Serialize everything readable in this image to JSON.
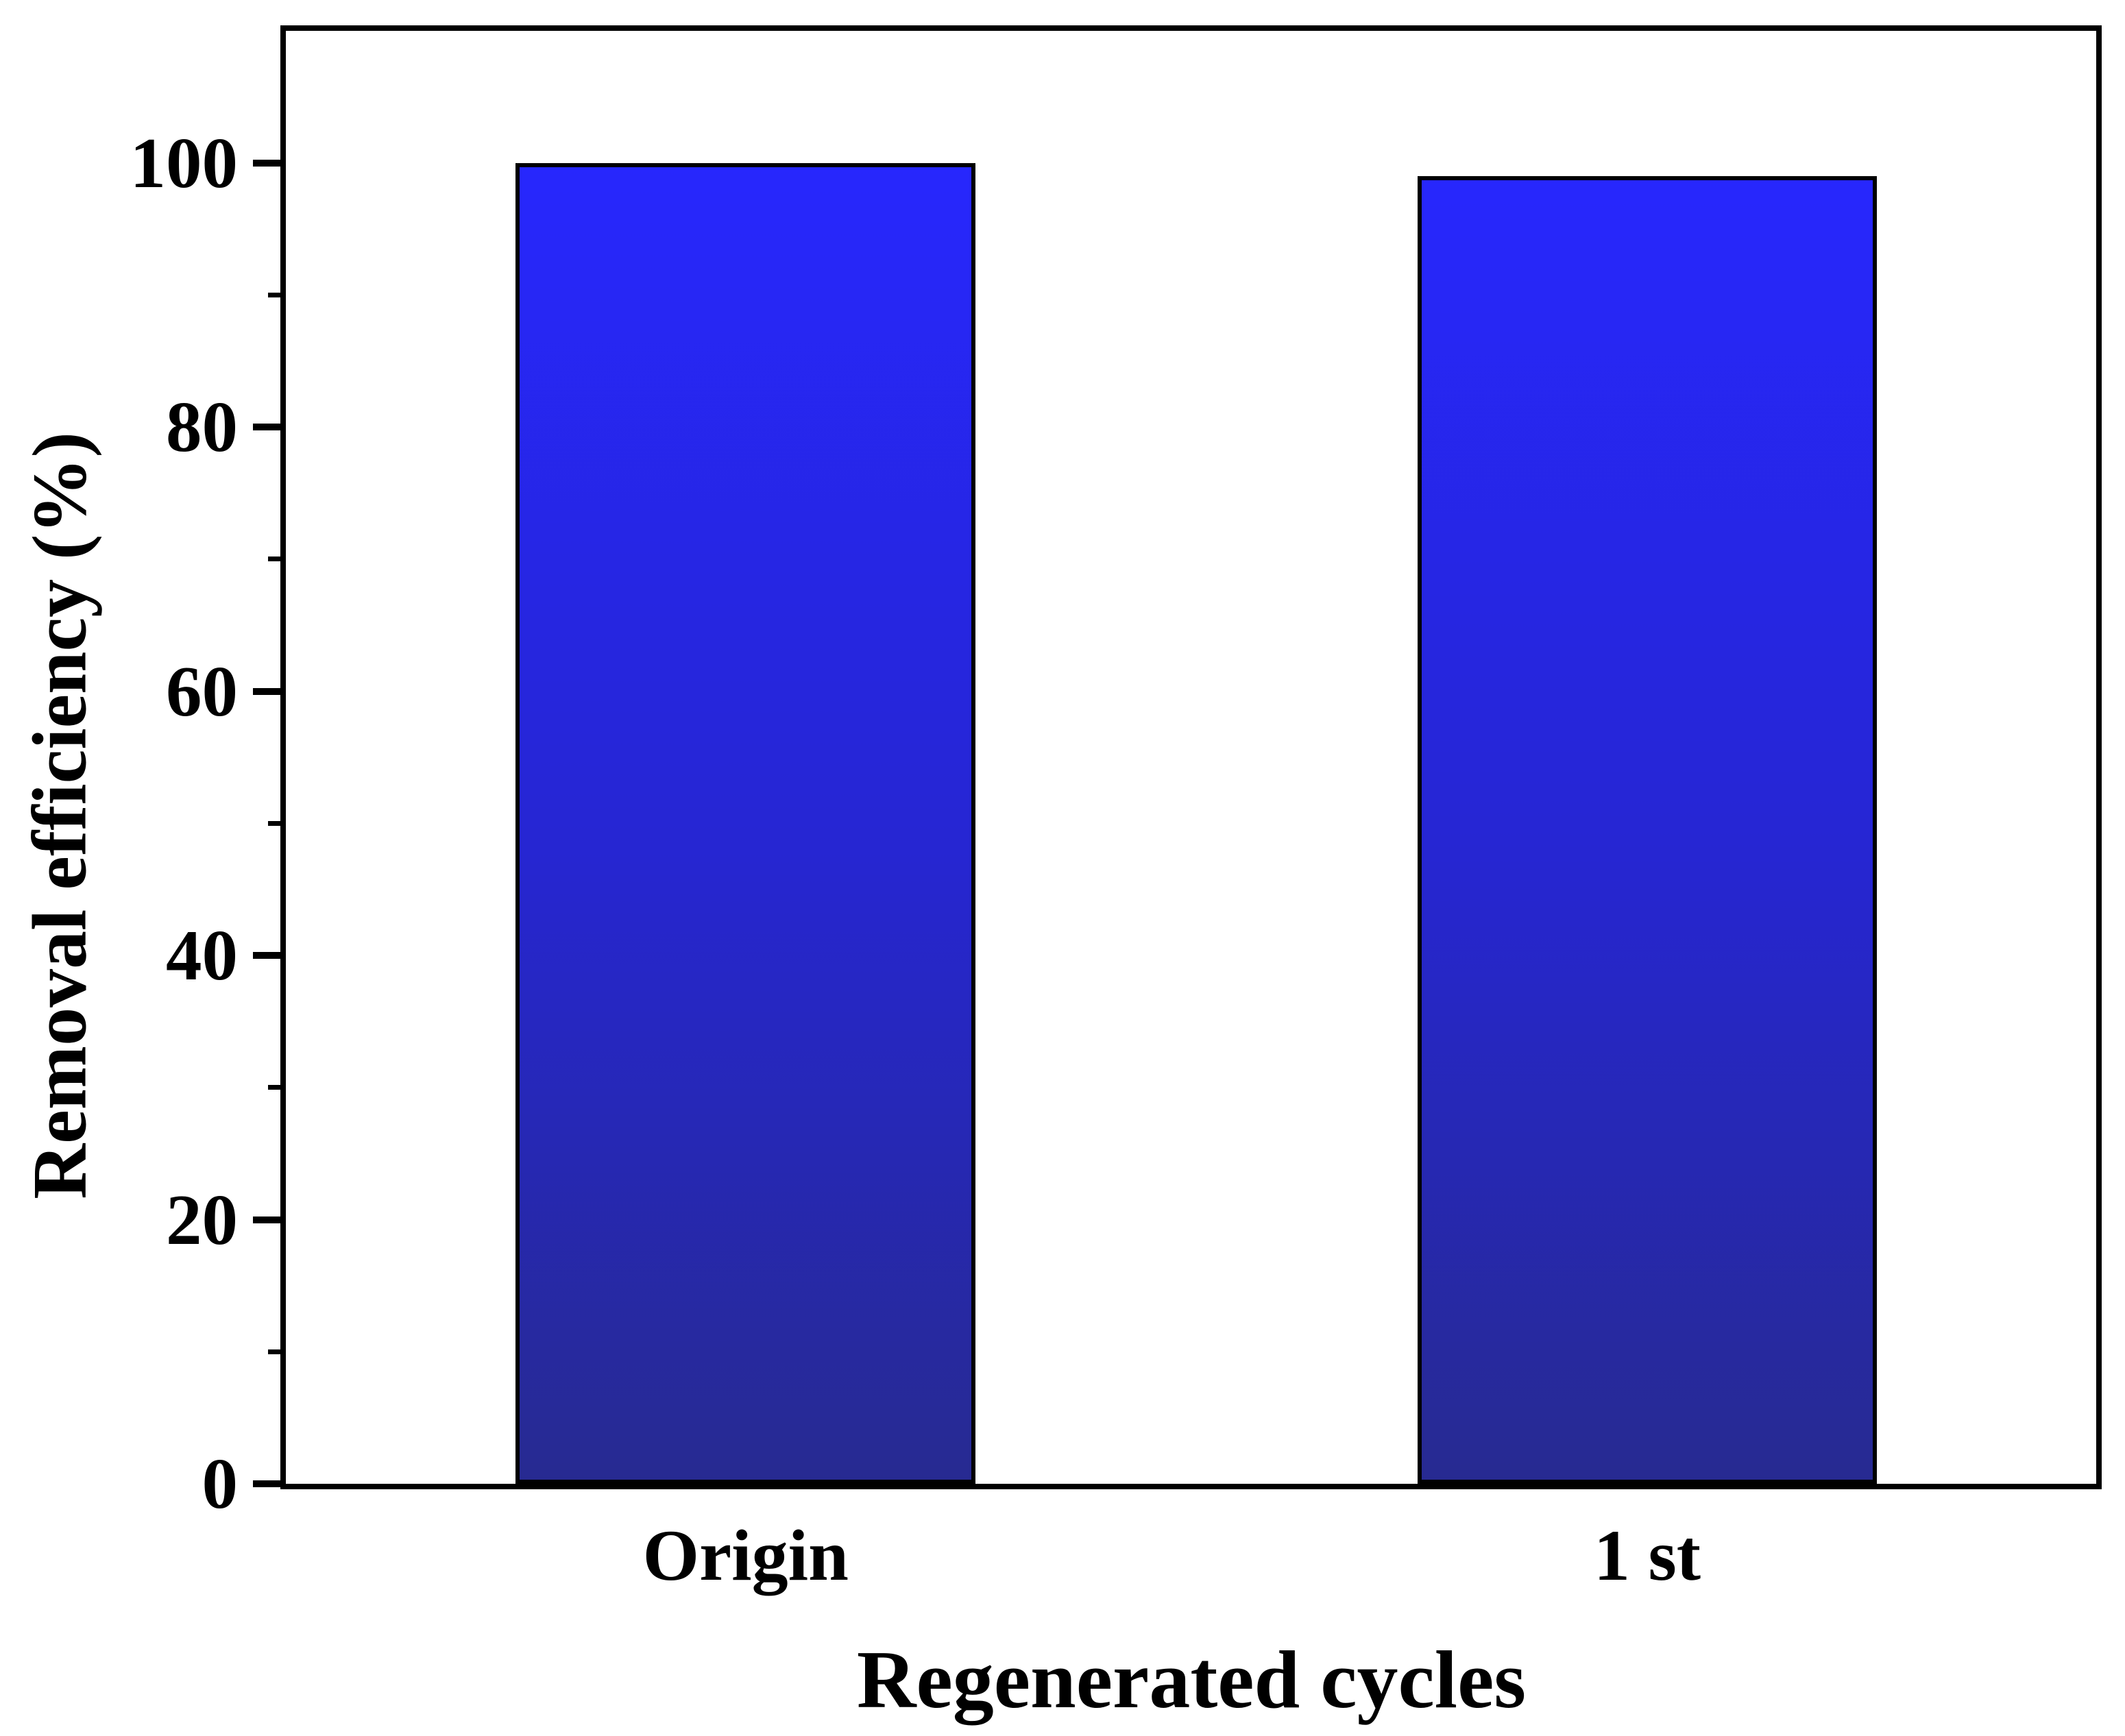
{
  "figure": {
    "background": "#ffffff",
    "frame_color": "#000000",
    "text_color": "#000000"
  },
  "chart_data": {
    "type": "bar",
    "title": "",
    "xlabel": "Regenerated cycles",
    "ylabel": "Removal efficiency (%)",
    "categories": [
      "Origin",
      "1 st"
    ],
    "values": [
      100,
      99
    ],
    "ylim": [
      0,
      110
    ],
    "yticks_major": [
      0,
      20,
      40,
      60,
      80,
      100
    ],
    "yticks_minor": [
      10,
      30,
      50,
      70,
      90
    ],
    "grid": false,
    "legend": null,
    "bar_color_top": "#2727fd",
    "bar_color_mid": "#2626d2",
    "bar_color_bottom": "#272a91",
    "bar_border_color": "#000000",
    "bar_width_frac": 0.254,
    "bar_center_fracs": [
      0.254,
      0.752
    ]
  }
}
